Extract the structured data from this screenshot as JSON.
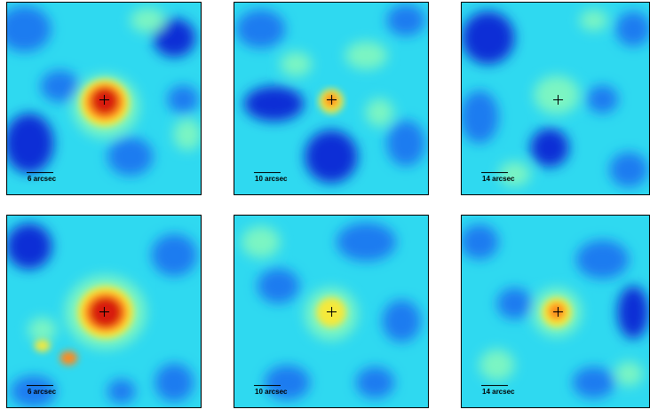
{
  "colormap": {
    "deep": "#0a2fd6",
    "blue": "#1a7cf0",
    "cyan": "#2fd9f0",
    "light": "#7cf5c2",
    "yellow": "#f5e93a",
    "orange": "#ff8a1a",
    "red": "#d81e10"
  },
  "panels": [
    {
      "scale_label": "6 arcsec"
    },
    {
      "scale_label": "10 arcsec"
    },
    {
      "scale_label": "14 arcsec"
    },
    {
      "scale_label": "6 arcsec"
    },
    {
      "scale_label": "10 arcsec"
    },
    {
      "scale_label": "14 arcsec"
    }
  ]
}
